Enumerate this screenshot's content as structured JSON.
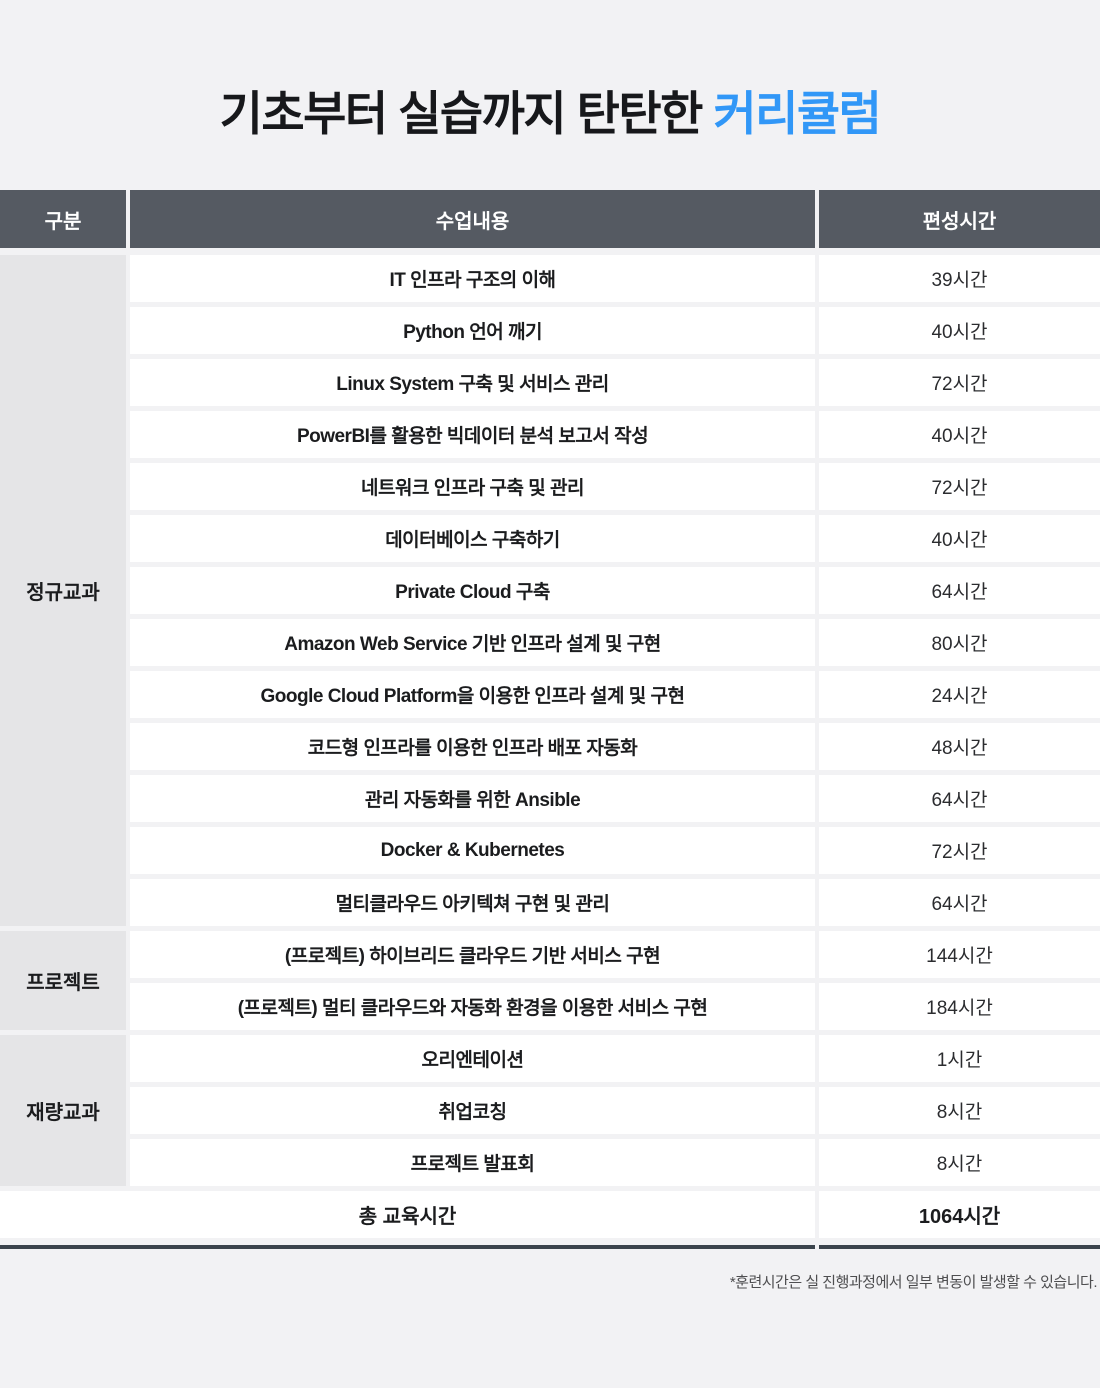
{
  "title": {
    "prefix": "기초부터 실습까지 탄탄한 ",
    "highlight": "커리큘럼"
  },
  "table": {
    "headers": {
      "category": "구분",
      "content": "수업내용",
      "hours": "편성시간"
    },
    "groups": [
      {
        "label": "정규교과",
        "rows": [
          {
            "content": "IT 인프라 구조의 이해",
            "hours": "39시간"
          },
          {
            "content": "Python 언어 깨기",
            "hours": "40시간"
          },
          {
            "content": "Linux System 구축 및 서비스 관리",
            "hours": "72시간"
          },
          {
            "content": "PowerBI를 활용한 빅데이터 분석 보고서 작성",
            "hours": "40시간"
          },
          {
            "content": "네트워크 인프라 구축 및 관리",
            "hours": "72시간"
          },
          {
            "content": "데이터베이스 구축하기",
            "hours": "40시간"
          },
          {
            "content": "Private Cloud 구축",
            "hours": "64시간"
          },
          {
            "content": "Amazon Web Service 기반 인프라 설계 및 구현",
            "hours": "80시간"
          },
          {
            "content": "Google Cloud Platform을 이용한 인프라 설계 및 구현",
            "hours": "24시간"
          },
          {
            "content": "코드형 인프라를 이용한 인프라 배포 자동화",
            "hours": "48시간"
          },
          {
            "content": "관리 자동화를 위한 Ansible",
            "hours": "64시간"
          },
          {
            "content": "Docker & Kubernetes",
            "hours": "72시간"
          },
          {
            "content": "멀티클라우드 아키텍쳐 구현 및 관리",
            "hours": "64시간"
          }
        ]
      },
      {
        "label": "프로젝트",
        "rows": [
          {
            "content": "(프로젝트) 하이브리드 클라우드 기반 서비스 구현",
            "hours": "144시간"
          },
          {
            "content": "(프로젝트) 멀티 클라우드와 자동화 환경을 이용한 서비스 구현",
            "hours": "184시간"
          }
        ]
      },
      {
        "label": "재량교과",
        "rows": [
          {
            "content": "오리엔테이션",
            "hours": "1시간"
          },
          {
            "content": "취업코칭",
            "hours": "8시간"
          },
          {
            "content": "프로젝트 발표회",
            "hours": "8시간"
          }
        ]
      }
    ],
    "total": {
      "label": "총 교육시간",
      "hours": "1064시간"
    }
  },
  "footer": {
    "note": "*훈련시간은 실 진행과정에서 일부 변동이 발생할 수 있습니다."
  },
  "colors": {
    "page_bg": "#F2F2F4",
    "header_bg": "#555A62",
    "header_text": "#FFFFFF",
    "group_cell_bg": "#E5E5E7",
    "row_bg": "#FFFFFF",
    "title_text": "#17181B",
    "accent_blue": "#3197F7",
    "rule": "#3B434C",
    "footnote_text": "#4E4E50"
  }
}
